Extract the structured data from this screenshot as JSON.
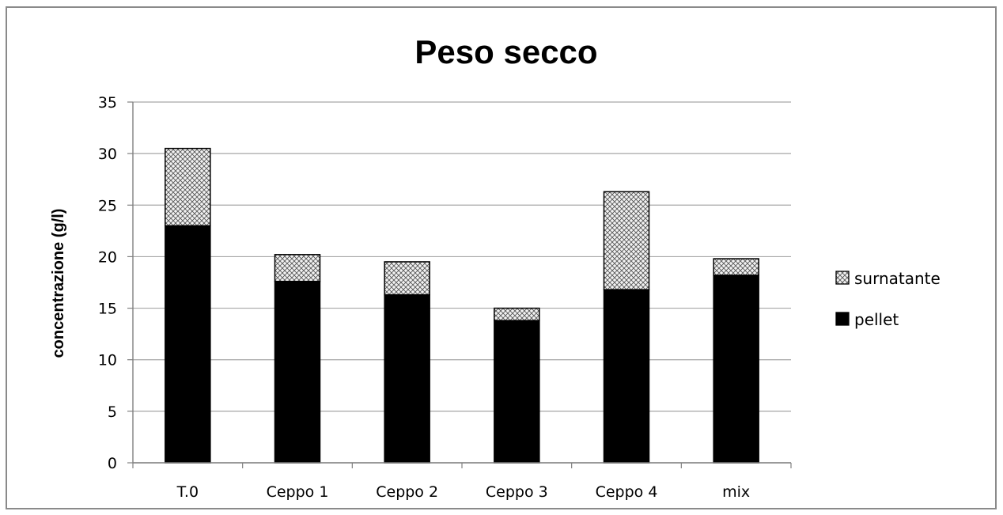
{
  "chart_data": {
    "type": "bar",
    "stacked": true,
    "title": "Peso secco",
    "xlabel": "",
    "ylabel": "concentrazione (g/l)",
    "ylim": [
      0,
      35
    ],
    "yticks": [
      0,
      5,
      10,
      15,
      20,
      25,
      30,
      35
    ],
    "grid": true,
    "legend_position": "right",
    "categories": [
      "T.0",
      "Ceppo 1",
      "Ceppo 2",
      "Ceppo 3",
      "Ceppo 4",
      "mix"
    ],
    "series": [
      {
        "name": "pellet",
        "values": [
          23.0,
          17.6,
          16.3,
          13.8,
          16.8,
          18.2
        ],
        "color": "#000000",
        "pattern": "solid"
      },
      {
        "name": "surnatante",
        "values": [
          7.5,
          2.6,
          3.2,
          1.2,
          9.5,
          1.6
        ],
        "color": "#000000",
        "pattern": "crosshatch"
      }
    ],
    "legend_order": [
      "surnatante",
      "pellet"
    ]
  }
}
